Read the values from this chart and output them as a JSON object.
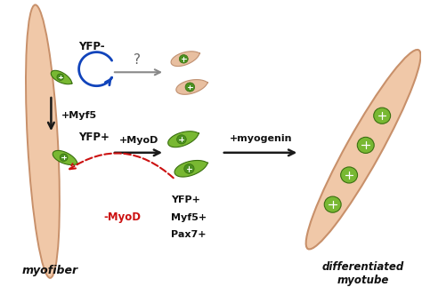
{
  "bg_color": "#ffffff",
  "muscle_color": "#f0c8a8",
  "muscle_edge": "#c8906a",
  "cell_green": "#78b832",
  "cell_green_dark": "#3a7010",
  "cell_nucleus_green": "#4a9020",
  "cell_body_tan": "#e8bfa0",
  "cell_tan_edge": "#c09070",
  "arrow_black": "#1a1a1a",
  "arrow_grey": "#888888",
  "arrow_blue": "#1144bb",
  "arrow_red": "#cc1111",
  "text_black": "#111111",
  "text_red": "#cc1111",
  "labels": {
    "yfp_minus": "YFP-",
    "myf5": "+Myf5",
    "yfp_plus": "YFP+",
    "myod_pos": "+MyoD",
    "myogenin": "+myogenin",
    "minus_myod": "-MyoD",
    "yfp_plus2": "YFP+",
    "myf5_plus": "Myf5+",
    "pax7_plus": "Pax7+",
    "question": "?",
    "myofiber": "myofiber",
    "myotube_line1": "differentiated",
    "myotube_line2": "myotube"
  }
}
